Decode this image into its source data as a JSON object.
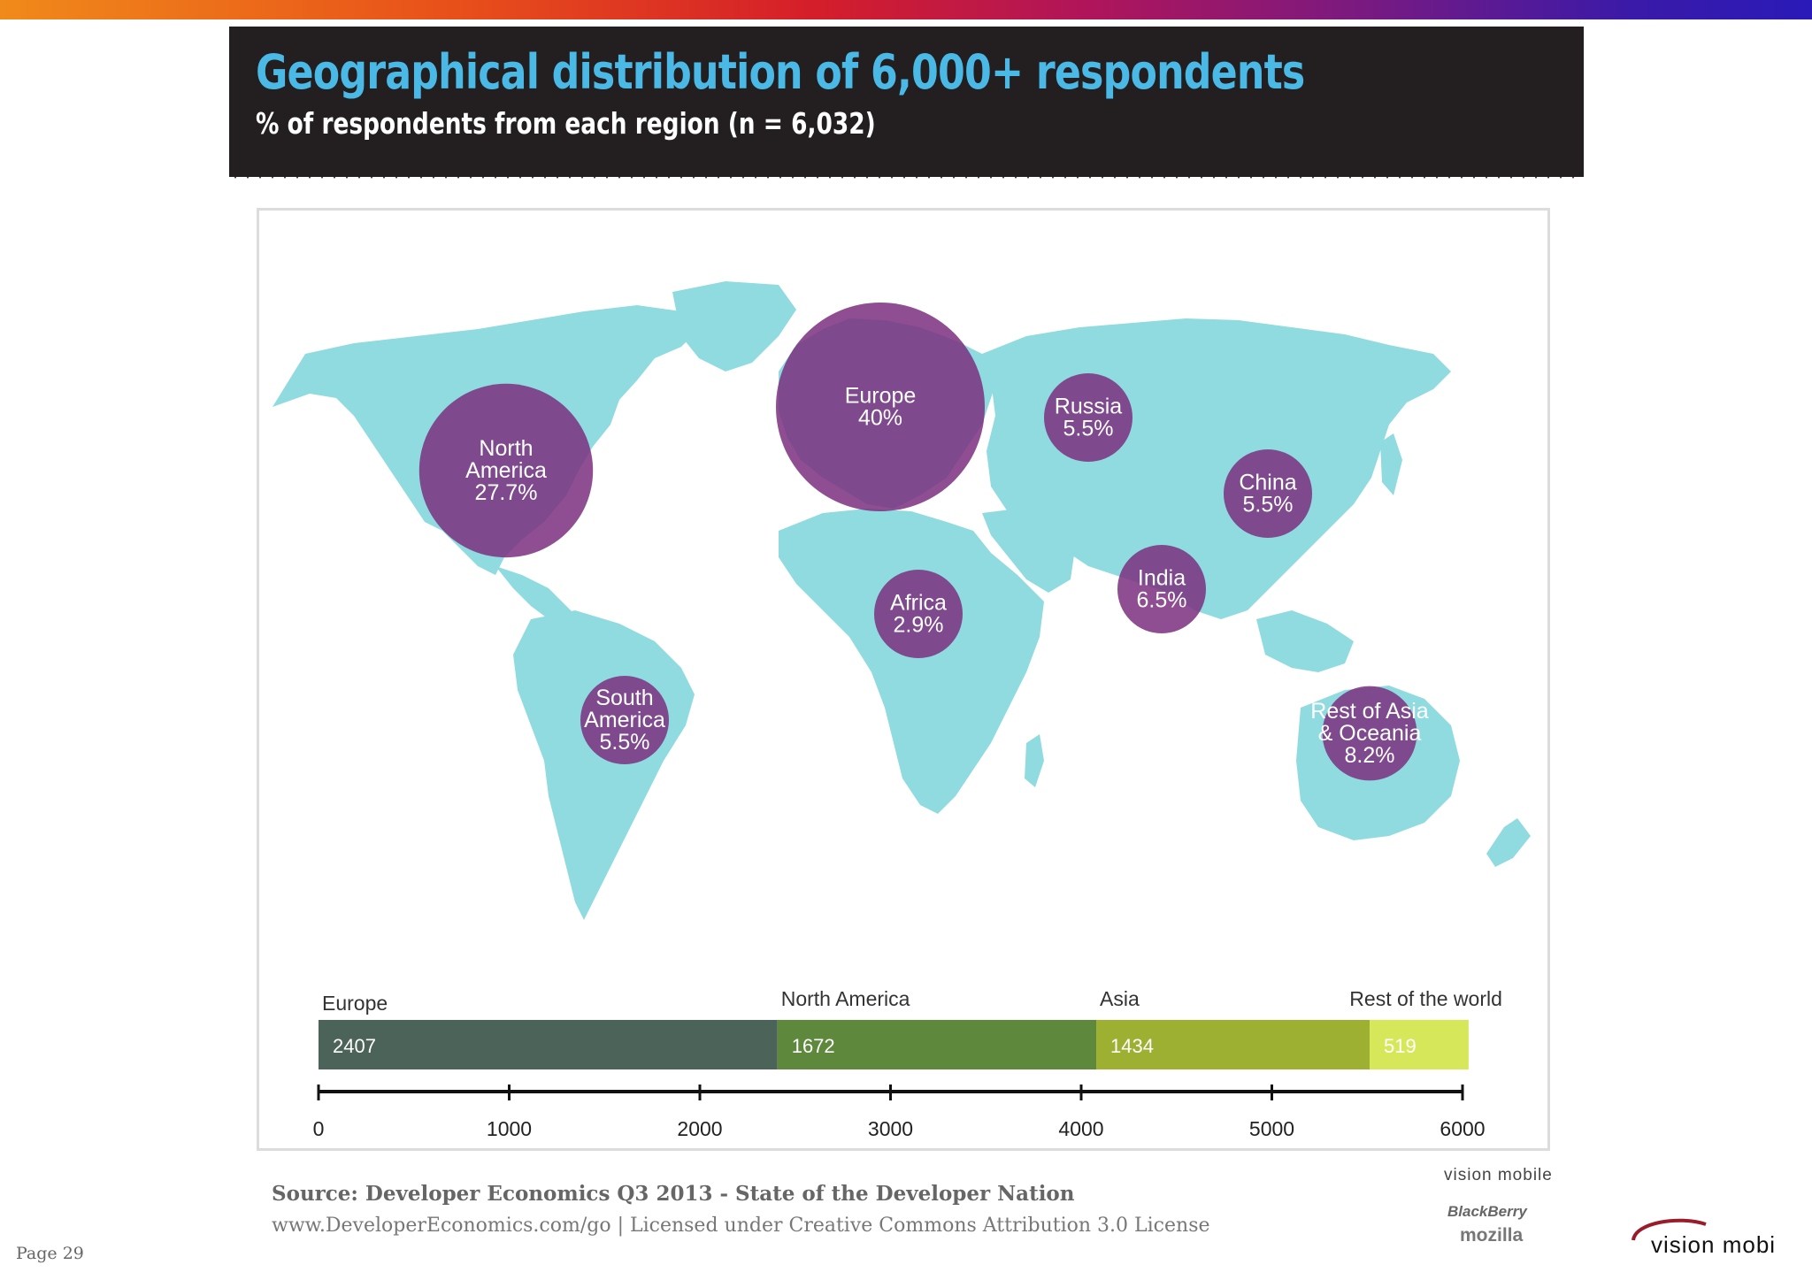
{
  "header": {
    "title": "Geographical distribution of 6,000+ respondents",
    "subtitle": "% of respondents from each region (n = 6,032)"
  },
  "chart_data": [
    {
      "type": "bubble-map",
      "regions": [
        {
          "name_lines": [
            "North",
            "America"
          ],
          "pct_label": "27.7%",
          "value": 27.7
        },
        {
          "name_lines": [
            "Europe"
          ],
          "pct_label": "40%",
          "value": 40
        },
        {
          "name_lines": [
            "Russia"
          ],
          "pct_label": "5.5%",
          "value": 5.5
        },
        {
          "name_lines": [
            "China"
          ],
          "pct_label": "5.5%",
          "value": 5.5
        },
        {
          "name_lines": [
            "India"
          ],
          "pct_label": "6.5%",
          "value": 6.5
        },
        {
          "name_lines": [
            "Africa"
          ],
          "pct_label": "2.9%",
          "value": 2.9
        },
        {
          "name_lines": [
            "South",
            "America"
          ],
          "pct_label": "5.5%",
          "value": 5.5
        },
        {
          "name_lines": [
            "Rest of Asia",
            "& Oceania"
          ],
          "pct_label": "8.2%",
          "value": 8.2
        }
      ],
      "colors": {
        "land": "#8fdbdf",
        "bubble": "#7b2f7f"
      }
    },
    {
      "type": "stacked-bar",
      "segments": [
        {
          "name": "Europe",
          "value": 2407,
          "color": "#4b6358"
        },
        {
          "name": "North America",
          "value": 1672,
          "color": "#5e883c"
        },
        {
          "name": "Asia",
          "value": 1434,
          "color": "#9db032"
        },
        {
          "name": "Rest of the world",
          "value": 519,
          "color": "#d6e85a"
        }
      ],
      "axis": {
        "min": 0,
        "max": 6000,
        "ticks": [
          0,
          1000,
          2000,
          3000,
          4000,
          5000,
          6000
        ]
      }
    }
  ],
  "footer": {
    "source": "Source: Developer Economics Q3 2013 - State of the Developer Nation",
    "license": "www.DeveloperEconomics.com/go | Licensed under Creative Commons Attribution 3.0 License",
    "page": "Page 29",
    "sponsors": [
      "vision mobile",
      "BlackBerry",
      "mozilla"
    ],
    "brand": "vision mobile"
  }
}
